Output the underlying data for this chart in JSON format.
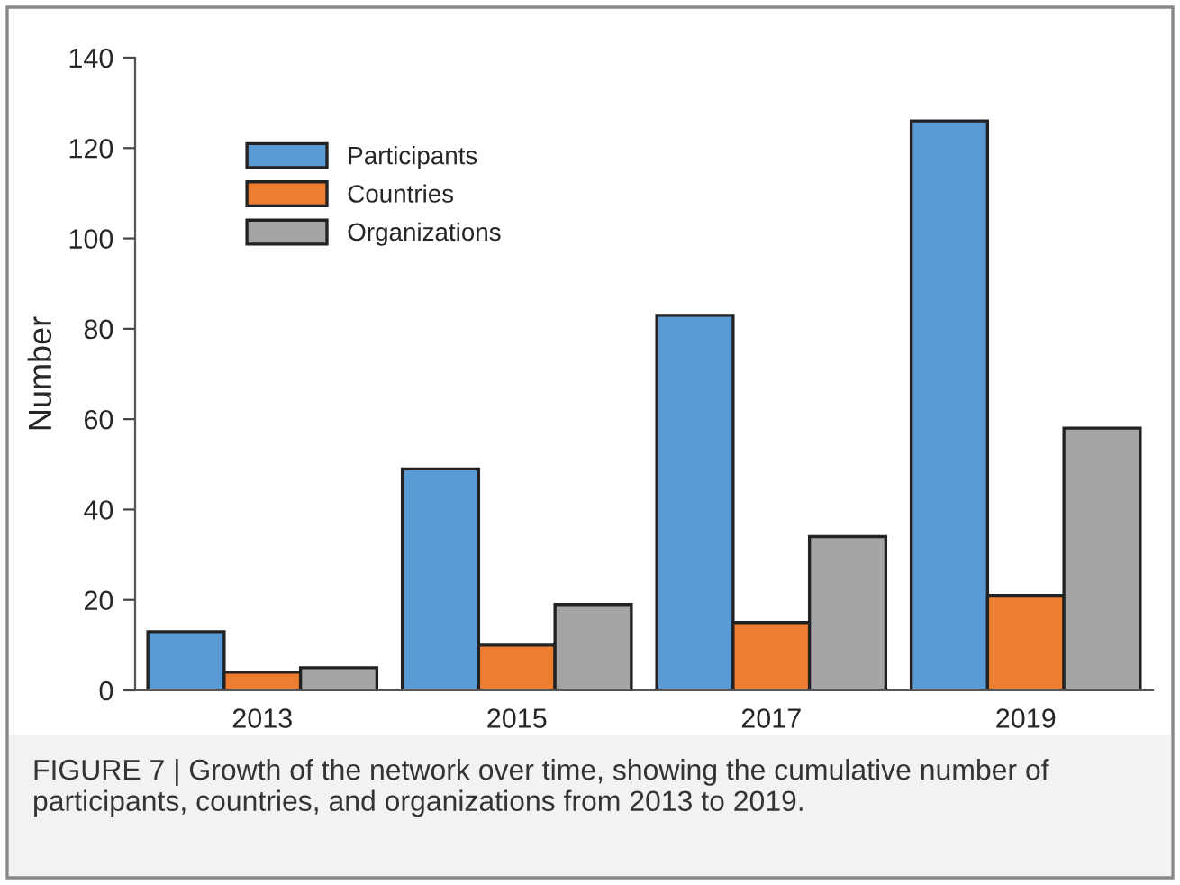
{
  "chart_data": {
    "type": "bar",
    "ylabel": "Number",
    "categories": [
      "2013",
      "2015",
      "2017",
      "2019"
    ],
    "series": [
      {
        "name": "Participants",
        "color": "#5b9bd5",
        "values": [
          13,
          49,
          83,
          126
        ]
      },
      {
        "name": "Countries",
        "color": "#ed7d31",
        "values": [
          4,
          10,
          15,
          21
        ]
      },
      {
        "name": "Organizations",
        "color": "#a5a5a5",
        "values": [
          5,
          19,
          34,
          58
        ]
      }
    ],
    "ylim": [
      0,
      140
    ],
    "yticks": [
      0,
      20,
      40,
      60,
      80,
      100,
      120,
      140
    ],
    "grid": false,
    "legend": "top left",
    "annotations": [
      "FIGURE 7 | Growth of the network over time, showing the cumulative number of participants, countries, and organizations from 2013 to 2019."
    ]
  }
}
